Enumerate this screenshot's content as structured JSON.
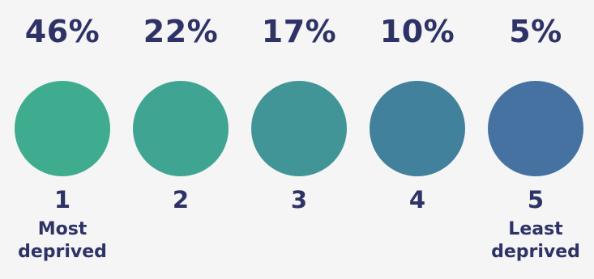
{
  "chart_data": {
    "type": "table",
    "categories": [
      "1",
      "2",
      "3",
      "4",
      "5"
    ],
    "values": [
      46,
      22,
      17,
      10,
      5
    ],
    "value_labels": [
      "46%",
      "22%",
      "17%",
      "10%",
      "5%"
    ],
    "category_descriptions": [
      [
        "Most",
        "deprived"
      ],
      [],
      [],
      [],
      [
        "Least",
        "deprived"
      ]
    ],
    "colors": [
      "#3fac8f",
      "#3fa592",
      "#419596",
      "#42819c",
      "#4572a1"
    ]
  }
}
